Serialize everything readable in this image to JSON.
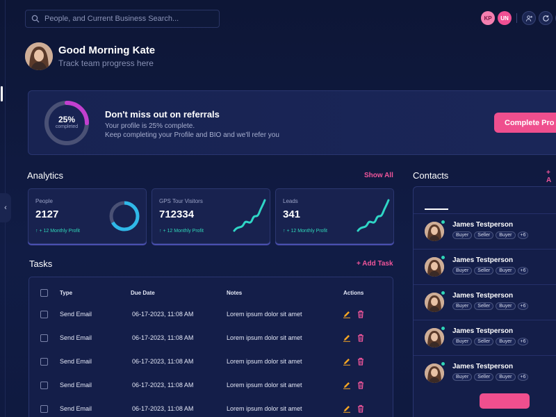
{
  "search": {
    "placeholder": "People, and Current Business Search..."
  },
  "topbar": {
    "avatars": [
      {
        "initials": "KP"
      },
      {
        "initials": "UN"
      }
    ],
    "icons": [
      "person-add-icon",
      "refresh-icon",
      "person-icon"
    ]
  },
  "greeting": {
    "title": "Good Morning Kate",
    "subtitle": "Track team progress here"
  },
  "referral": {
    "progress_label": "25%",
    "progress_fraction": 0.25,
    "progress_caption": "completed",
    "title": "Don't miss out on referrals",
    "line1": "Your profile is 25% complete.",
    "line2": "Keep completing your Profile and BIO and we'll refer you",
    "button": "Complete Pro"
  },
  "analytics": {
    "title": "Analytics",
    "show_all": "Show All",
    "cards": [
      {
        "label": "People",
        "value": "2127",
        "trend": "↑  + 12 Monthly Profit"
      },
      {
        "label": "GPS Tour Visitors",
        "value": "712334",
        "trend": "↑  + 12 Monthly Profit"
      },
      {
        "label": "Leads",
        "value": "341",
        "trend": "↑  + 12 Monthly Profit"
      }
    ]
  },
  "tasks": {
    "title": "Tasks",
    "add": "+ Add Task",
    "columns": {
      "type": "Type",
      "due": "Due Date",
      "notes": "Notes",
      "actions": "Actions"
    },
    "rows": [
      {
        "type": "Send Email",
        "due": "06-17-2023, 11:08 AM",
        "notes": "Lorem ipsum dolor sit amet"
      },
      {
        "type": "Send Email",
        "due": "06-17-2023, 11:08 AM",
        "notes": "Lorem ipsum dolor sit amet"
      },
      {
        "type": "Send Email",
        "due": "06-17-2023, 11:08 AM",
        "notes": "Lorem ipsum dolor sit amet"
      },
      {
        "type": "Send Email",
        "due": "06-17-2023, 11:08 AM",
        "notes": "Lorem ipsum dolor sit amet"
      },
      {
        "type": "Send Email",
        "due": "06-17-2023, 11:08 AM",
        "notes": "Lorem ipsum dolor sit amet"
      }
    ]
  },
  "contacts": {
    "title": "Contacts",
    "add": "+ A",
    "items": [
      {
        "name": "James Testperson",
        "tags": [
          "Buyer",
          "Seller",
          "Buyer"
        ],
        "more": "+6"
      },
      {
        "name": "James Testperson",
        "tags": [
          "Buyer",
          "Seller",
          "Buyer"
        ],
        "more": "+6"
      },
      {
        "name": "James Testperson",
        "tags": [
          "Buyer",
          "Seller",
          "Buyer"
        ],
        "more": "+6"
      },
      {
        "name": "James Testperson",
        "tags": [
          "Buyer",
          "Seller",
          "Buyer"
        ],
        "more": "+6"
      },
      {
        "name": "James Testperson",
        "tags": [
          "Buyer",
          "Seller",
          "Buyer"
        ],
        "more": "+6"
      }
    ]
  },
  "colors": {
    "accent": "#ef4f8e",
    "trend": "#2fd6b8",
    "background": "#0d1636"
  }
}
